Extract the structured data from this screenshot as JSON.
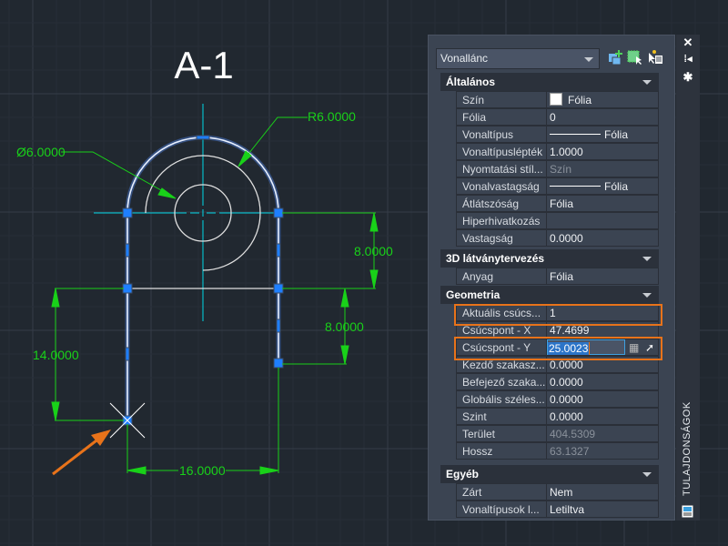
{
  "drawing": {
    "title": "A-1",
    "dims": {
      "radius": "R6.0000",
      "diameter": "Ø6.0000",
      "upper_right": "8.0000",
      "lower_right": "8.0000",
      "left": "14.0000",
      "bottom": "16.0000"
    },
    "colors": {
      "dimension": "#19d119",
      "centerline": "#00d7e6",
      "geometry": "#e0e0e0",
      "selected": "#9ec6ff",
      "grip": "#1e7fff",
      "callout": "#e8731a"
    }
  },
  "palette": {
    "object_type": "Vonallánc",
    "sections": [
      {
        "title": "Általános",
        "rows": [
          {
            "label": "Szín",
            "value": "Fólia",
            "kind": "swatch"
          },
          {
            "label": "Fólia",
            "value": "0"
          },
          {
            "label": "Vonaltípus",
            "value": "Fólia",
            "kind": "line"
          },
          {
            "label": "Vonaltípuslépték",
            "value": "1.0000"
          },
          {
            "label": "Nyomtatási stíl...",
            "value": "Szín",
            "kind": "dim"
          },
          {
            "label": "Vonalvastagság",
            "value": "Fólia",
            "kind": "line"
          },
          {
            "label": "Átlátszóság",
            "value": "Fólia"
          },
          {
            "label": "Hiperhivatkozás",
            "value": ""
          },
          {
            "label": "Vastagság",
            "value": "0.0000"
          }
        ]
      },
      {
        "title": "3D látványtervezés",
        "rows": [
          {
            "label": "Anyag",
            "value": "Fólia"
          }
        ]
      },
      {
        "title": "Geometria",
        "rows": [
          {
            "label": "Aktuális csúcs...",
            "value": "1"
          },
          {
            "label": "Csúcspont - X",
            "value": "47.4699"
          },
          {
            "label": "Csúcspont - Y",
            "value": "25.0023",
            "kind": "edit"
          },
          {
            "label": "Kezdő szakasz...",
            "value": "0.0000"
          },
          {
            "label": "Befejező szaka...",
            "value": "0.0000"
          },
          {
            "label": "Globális széles...",
            "value": "0.0000"
          },
          {
            "label": "Szint",
            "value": "0.0000"
          },
          {
            "label": "Terület",
            "value": "404.5309",
            "kind": "dim"
          },
          {
            "label": "Hossz",
            "value": "63.1327",
            "kind": "dim"
          }
        ]
      },
      {
        "title": "Egyéb",
        "rows": [
          {
            "label": "Zárt",
            "value": "Nem"
          },
          {
            "label": "Vonaltípusok l...",
            "value": "Letiltva"
          }
        ]
      }
    ],
    "side_title": "TULAJDONSÁGOK"
  }
}
